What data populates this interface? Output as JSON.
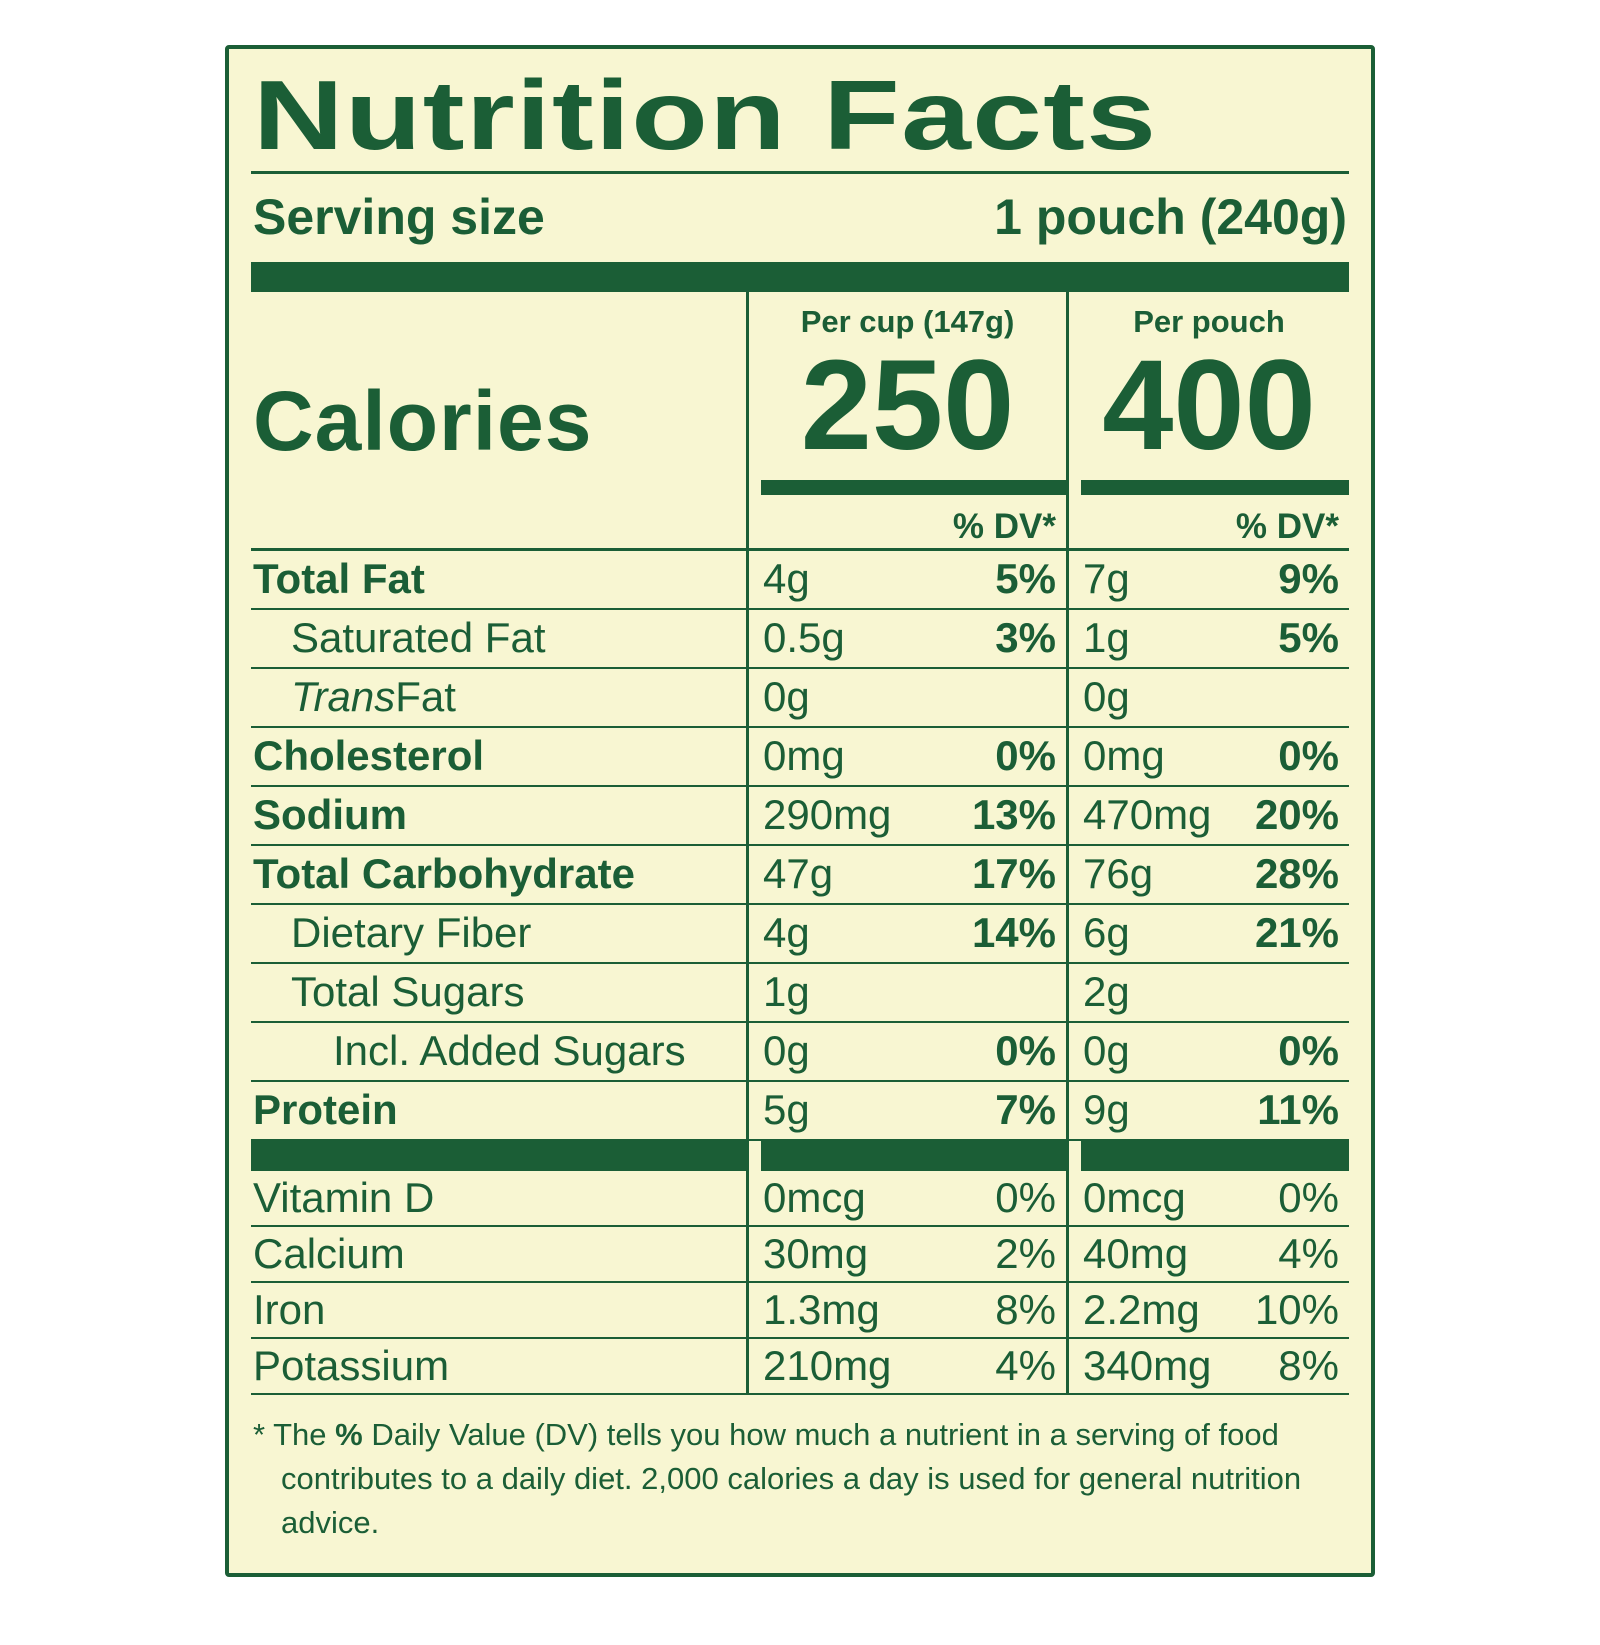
{
  "colors": {
    "green": "#1b5e36",
    "cream": "#f8f6d2",
    "page_background": "#ffffff"
  },
  "label": {
    "title": "Nutrition Facts",
    "serving": {
      "label": "Serving size",
      "value": "1 pouch (240g)"
    },
    "calories_label": "Calories",
    "columns": [
      {
        "header": "Per cup (147g)",
        "calories": "250",
        "dv_header": "% DV*"
      },
      {
        "header": "Per pouch",
        "calories": "400",
        "dv_header": "% DV*"
      }
    ],
    "rows": [
      {
        "name": "Total Fat",
        "bold": true,
        "indent": 0,
        "cup": "4g",
        "cup_dv": "5%",
        "pouch": "7g",
        "pouch_dv": "9%"
      },
      {
        "name": "Saturated Fat",
        "bold": false,
        "indent": 1,
        "cup": "0.5g",
        "cup_dv": "3%",
        "pouch": "1g",
        "pouch_dv": "5%"
      },
      {
        "name_italic": "Trans",
        "name": " Fat",
        "bold": false,
        "indent": 1,
        "cup": "0g",
        "cup_dv": "",
        "pouch": "0g",
        "pouch_dv": ""
      },
      {
        "name": "Cholesterol",
        "bold": true,
        "indent": 0,
        "cup": "0mg",
        "cup_dv": "0%",
        "pouch": "0mg",
        "pouch_dv": "0%"
      },
      {
        "name": "Sodium",
        "bold": true,
        "indent": 0,
        "cup": "290mg",
        "cup_dv": "13%",
        "pouch": "470mg",
        "pouch_dv": "20%"
      },
      {
        "name": "Total Carbohydrate",
        "bold": true,
        "indent": 0,
        "cup": "47g",
        "cup_dv": "17%",
        "pouch": "76g",
        "pouch_dv": "28%"
      },
      {
        "name": "Dietary Fiber",
        "bold": false,
        "indent": 1,
        "cup": "4g",
        "cup_dv": "14%",
        "pouch": "6g",
        "pouch_dv": "21%"
      },
      {
        "name": "Total Sugars",
        "bold": false,
        "indent": 1,
        "cup": "1g",
        "cup_dv": "",
        "pouch": "2g",
        "pouch_dv": ""
      },
      {
        "name": "Incl. Added Sugars",
        "bold": false,
        "indent": 2,
        "cup": "0g",
        "cup_dv": "0%",
        "pouch": "0g",
        "pouch_dv": "0%"
      },
      {
        "name": "Protein",
        "bold": true,
        "indent": 0,
        "cup": "5g",
        "cup_dv": "7%",
        "pouch": "9g",
        "pouch_dv": "11%"
      }
    ],
    "vitamins": [
      {
        "name": "Vitamin D",
        "cup": "0mcg",
        "cup_dv": "0%",
        "pouch": "0mcg",
        "pouch_dv": "0%"
      },
      {
        "name": "Calcium",
        "cup": "30mg",
        "cup_dv": "2%",
        "pouch": "40mg",
        "pouch_dv": "4%"
      },
      {
        "name": "Iron",
        "cup": "1.3mg",
        "cup_dv": "8%",
        "pouch": "2.2mg",
        "pouch_dv": "10%"
      },
      {
        "name": "Potassium",
        "cup": "210mg",
        "cup_dv": "4%",
        "pouch": "340mg",
        "pouch_dv": "8%"
      }
    ],
    "footnote": {
      "prefix": "* The ",
      "bold": "%",
      "rest": " Daily Value (DV) tells you how much a nutrient in a serving of food contributes to a daily diet. 2,000 calories a day is used for general nutrition advice."
    }
  }
}
